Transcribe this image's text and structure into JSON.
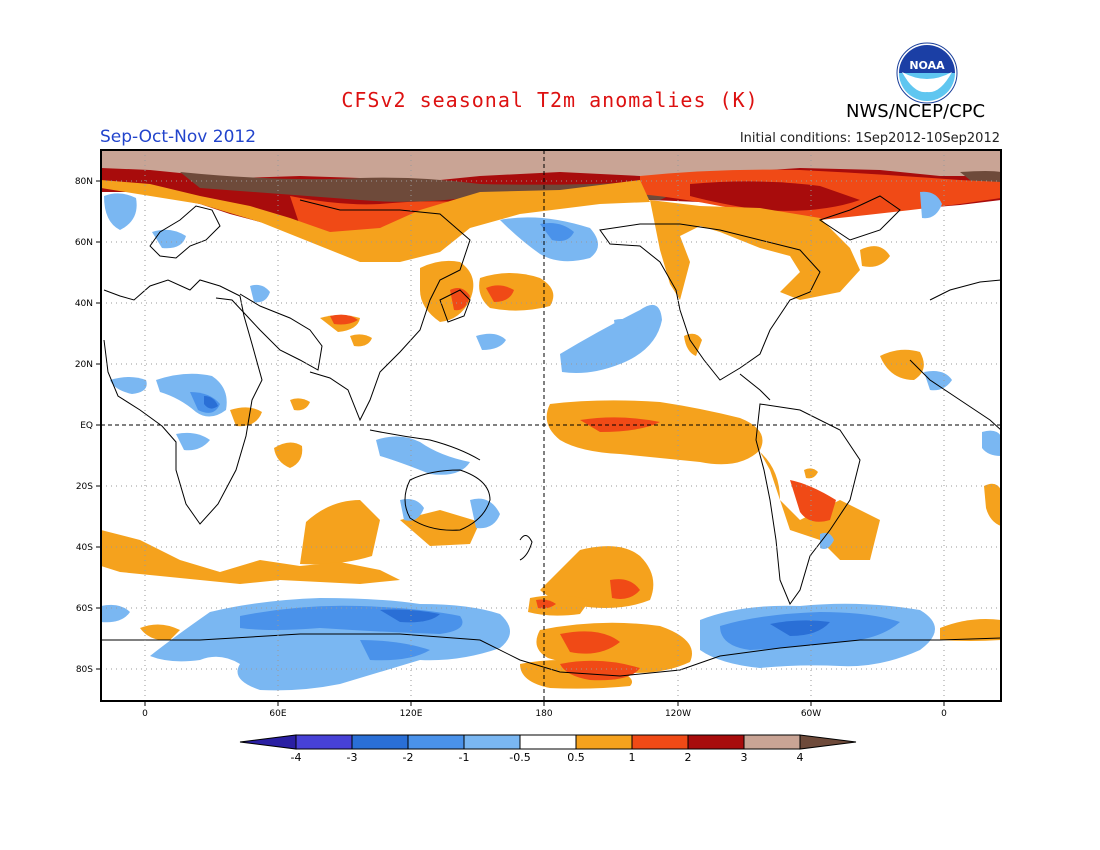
{
  "header": {
    "title": "CFSv2 seasonal T2m anomalies (K)",
    "season": "Sep-Oct-Nov 2012",
    "initial_conditions": "Initial conditions: 1Sep2012-10Sep2012",
    "agency": "NWS/NCEP/CPC",
    "logo_text": "NOAA"
  },
  "axes": {
    "lat_labels": [
      "80N",
      "60N",
      "40N",
      "20N",
      "EQ",
      "20S",
      "40S",
      "60S",
      "80S"
    ],
    "lon_labels": [
      "0",
      "60E",
      "120E",
      "180",
      "120W",
      "60W",
      "0"
    ]
  },
  "colorbar": {
    "labels": [
      "-4",
      "-3",
      "-2",
      "-1",
      "-0.5",
      "0.5",
      "1",
      "2",
      "3",
      "4"
    ],
    "colors": [
      "#2a1fa3",
      "#4741d6",
      "#2a6fd6",
      "#4a92ea",
      "#7ab7f2",
      "#ffffff",
      "#f5a21d",
      "#f04a16",
      "#a80c0c",
      "#c9a495",
      "#6e4a3a"
    ]
  },
  "map": {
    "colors": {
      "ocean_land_bg": "#ffffff",
      "coast": "#000000",
      "grid": "#888888"
    }
  }
}
